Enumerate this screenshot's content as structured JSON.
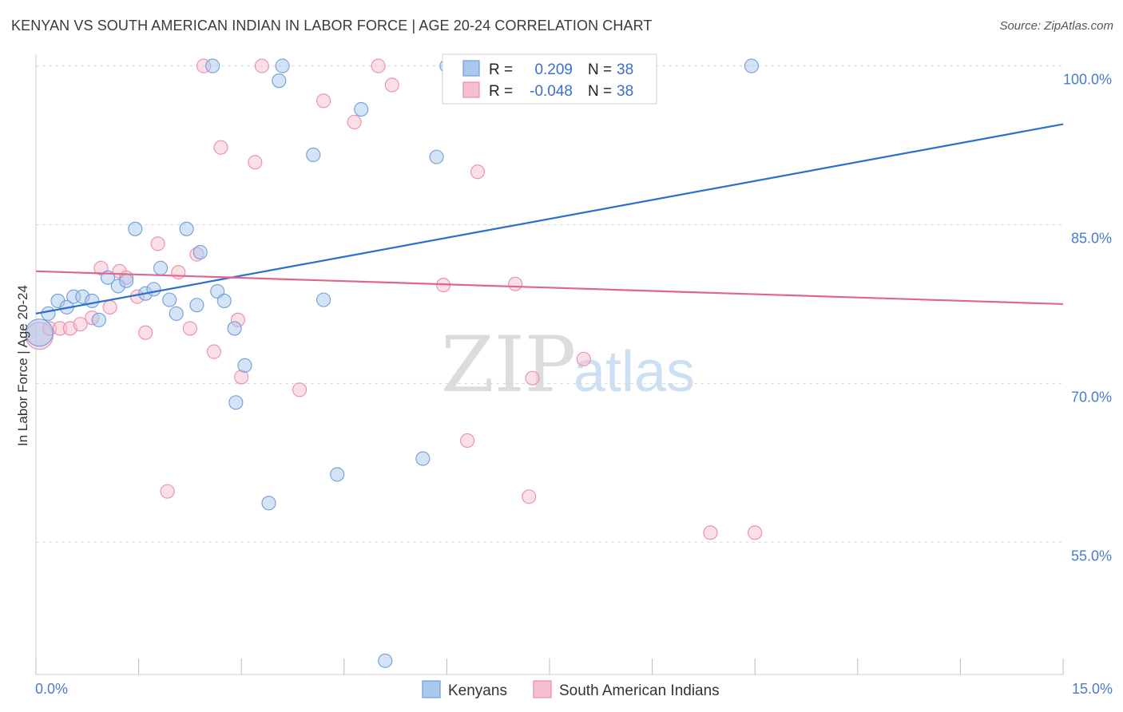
{
  "header": {
    "title": "KENYAN VS SOUTH AMERICAN INDIAN IN LABOR FORCE | AGE 20-24 CORRELATION CHART",
    "source": "Source: ZipAtlas.com"
  },
  "watermark": {
    "zip": "ZIP",
    "atlas": "atlas"
  },
  "colors": {
    "blue_fill": "#aac8ee",
    "blue_stroke": "#6f9ed8",
    "blue_line": "#2b6fcf",
    "pink_fill": "#f6bfd0",
    "pink_stroke": "#e98dab",
    "pink_line": "#e0668f",
    "grid": "#d8d8d8",
    "tick_text": "#4a7bc8"
  },
  "legend": {
    "rows": [
      {
        "r_label": "R =",
        "r_value": "0.209",
        "n_label": "N =",
        "n_value": "38"
      },
      {
        "r_label": "R =",
        "r_value": "-0.048",
        "n_label": "N =",
        "n_value": "38"
      }
    ]
  },
  "chart_data": {
    "type": "scatter",
    "title": "KENYAN VS SOUTH AMERICAN INDIAN IN LABOR FORCE | AGE 20-24 CORRELATION CHART",
    "xlabel": "",
    "ylabel": "In Labor Force | Age 20-24",
    "xlim": [
      0,
      15
    ],
    "ylim": [
      42.5,
      100.8
    ],
    "x_tick_labels": [
      "0.0%",
      "15.0%"
    ],
    "y_ticks": [
      100,
      85,
      70,
      55
    ],
    "y_tick_labels": [
      "100.0%",
      "85.0%",
      "70.0%",
      "55.0%"
    ],
    "grid": true,
    "legend_placement": "top-center",
    "series": [
      {
        "name": "Kenyans",
        "r": 0.209,
        "n": 38,
        "trend": {
          "x": [
            0,
            15
          ],
          "y": [
            76.6,
            94.5
          ]
        },
        "points": [
          [
            0.05,
            74.8
          ],
          [
            0.18,
            76.6
          ],
          [
            0.32,
            77.8
          ],
          [
            0.45,
            77.2
          ],
          [
            0.55,
            78.2
          ],
          [
            0.68,
            78.2
          ],
          [
            0.82,
            77.8
          ],
          [
            0.92,
            76.0
          ],
          [
            1.05,
            80.0
          ],
          [
            1.2,
            79.2
          ],
          [
            1.32,
            79.7
          ],
          [
            1.45,
            84.6
          ],
          [
            1.6,
            78.5
          ],
          [
            1.72,
            78.9
          ],
          [
            1.82,
            80.9
          ],
          [
            1.95,
            77.9
          ],
          [
            2.05,
            76.6
          ],
          [
            2.2,
            84.6
          ],
          [
            2.35,
            77.4
          ],
          [
            2.4,
            82.4
          ],
          [
            2.58,
            100.0
          ],
          [
            2.65,
            78.7
          ],
          [
            2.75,
            77.8
          ],
          [
            2.9,
            75.2
          ],
          [
            2.92,
            68.2
          ],
          [
            3.05,
            71.7
          ],
          [
            3.4,
            58.7
          ],
          [
            3.55,
            98.6
          ],
          [
            3.6,
            100.0
          ],
          [
            4.05,
            91.6
          ],
          [
            4.2,
            77.9
          ],
          [
            4.4,
            61.4
          ],
          [
            4.75,
            95.9
          ],
          [
            5.1,
            43.8
          ],
          [
            5.65,
            62.9
          ],
          [
            5.85,
            91.4
          ],
          [
            6.0,
            100.0
          ],
          [
            10.45,
            100.0
          ]
        ]
      },
      {
        "name": "South American Indians",
        "r": -0.048,
        "n": 38,
        "trend": {
          "x": [
            0,
            15
          ],
          "y": [
            80.6,
            77.5
          ]
        },
        "points": [
          [
            0.05,
            74.5
          ],
          [
            0.2,
            75.2
          ],
          [
            0.35,
            75.2
          ],
          [
            0.5,
            75.2
          ],
          [
            0.65,
            75.6
          ],
          [
            0.82,
            76.2
          ],
          [
            0.95,
            80.9
          ],
          [
            1.08,
            77.2
          ],
          [
            1.22,
            80.6
          ],
          [
            1.32,
            80.0
          ],
          [
            1.48,
            78.2
          ],
          [
            1.6,
            74.8
          ],
          [
            1.78,
            83.2
          ],
          [
            1.92,
            59.8
          ],
          [
            2.08,
            80.5
          ],
          [
            2.25,
            75.2
          ],
          [
            2.35,
            82.2
          ],
          [
            2.45,
            100.0
          ],
          [
            2.6,
            73.0
          ],
          [
            2.7,
            92.3
          ],
          [
            2.95,
            76.0
          ],
          [
            3.0,
            70.6
          ],
          [
            3.2,
            90.9
          ],
          [
            3.3,
            100.0
          ],
          [
            3.85,
            69.4
          ],
          [
            4.2,
            96.7
          ],
          [
            4.65,
            94.7
          ],
          [
            5.0,
            100.0
          ],
          [
            5.2,
            98.2
          ],
          [
            5.95,
            79.3
          ],
          [
            6.3,
            64.6
          ],
          [
            6.45,
            90.0
          ],
          [
            7.0,
            79.4
          ],
          [
            7.2,
            59.3
          ],
          [
            7.25,
            70.5
          ],
          [
            8.0,
            72.3
          ],
          [
            9.85,
            55.9
          ],
          [
            10.5,
            55.9
          ]
        ]
      }
    ]
  },
  "bottom_legend": [
    {
      "label": "Kenyans"
    },
    {
      "label": "South American Indians"
    }
  ]
}
